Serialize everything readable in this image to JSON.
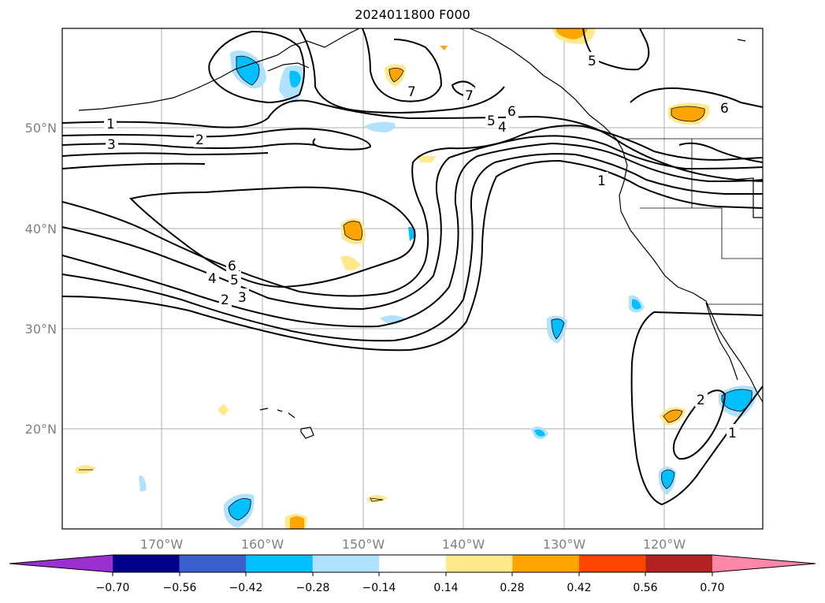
{
  "title": "2024011800 F000",
  "map": {
    "lat_ticks": [
      "50°N",
      "40°N",
      "30°N",
      "20°N"
    ],
    "lon_ticks": [
      "170°W",
      "160°W",
      "150°W",
      "140°W",
      "130°W",
      "120°W"
    ],
    "contour_labels": [
      "1",
      "2",
      "3",
      "6",
      "4",
      "5",
      "3",
      "2",
      "5",
      "4",
      "6",
      "7",
      "7",
      "5",
      "6",
      "1",
      "2",
      "1"
    ],
    "colors": {
      "contour": "#000000",
      "grid": "#b0b0b0",
      "tick_label": "#808080"
    }
  },
  "colorbar": {
    "ticks": [
      "−0.70",
      "−0.56",
      "−0.42",
      "−0.28",
      "−0.14",
      "0.14",
      "0.28",
      "0.42",
      "0.56",
      "0.70"
    ],
    "colors": [
      "#9b30d0",
      "#00008b",
      "#3a5fcd",
      "#00bfff",
      "#b0e2ff",
      "#ffffff",
      "#ffe98a",
      "#ffa500",
      "#ff4500",
      "#b22222",
      "#ff88aa"
    ]
  }
}
